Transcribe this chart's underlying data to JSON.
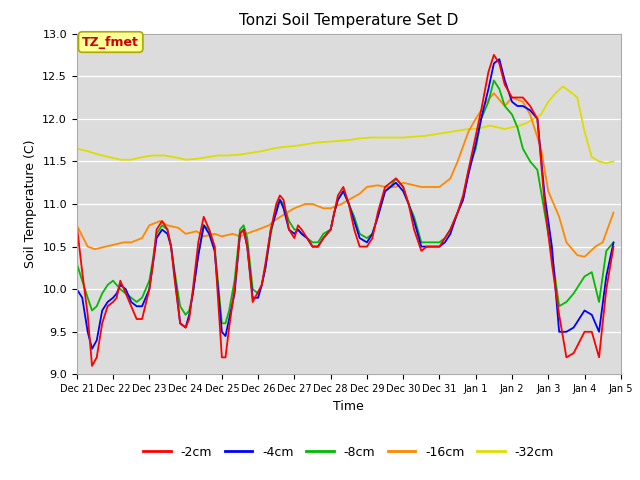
{
  "title": "Tonzi Soil Temperature Set D",
  "xlabel": "Time",
  "ylabel": "Soil Temperature (C)",
  "ylim": [
    9.0,
    13.0
  ],
  "yticks": [
    9.0,
    9.5,
    10.0,
    10.5,
    11.0,
    11.5,
    12.0,
    12.5,
    13.0
  ],
  "xtick_labels": [
    "Dec 21",
    "Dec 22",
    "Dec 23",
    "Dec 24",
    "Dec 25",
    "Dec 26",
    "Dec 27",
    "Dec 28",
    "Dec 29",
    "Dec 30",
    "Dec 31",
    "Jan 1",
    "Jan 2",
    "Jan 3",
    "Jan 4",
    "Jan 5"
  ],
  "annotation_text": "TZ_fmet",
  "annotation_color": "#cc0000",
  "annotation_bg": "#ffff99",
  "background_color": "#dcdcdc",
  "series": {
    "neg2cm": {
      "color": "#ff0000",
      "label": "-2cm",
      "x": [
        0,
        0.15,
        0.3,
        0.42,
        0.55,
        0.7,
        0.85,
        1.0,
        1.1,
        1.2,
        1.35,
        1.5,
        1.65,
        1.8,
        2.0,
        2.1,
        2.2,
        2.35,
        2.5,
        2.6,
        2.7,
        2.85,
        3.0,
        3.1,
        3.2,
        3.35,
        3.5,
        3.65,
        3.8,
        4.0,
        4.1,
        4.2,
        4.35,
        4.5,
        4.6,
        4.7,
        4.85,
        5.0,
        5.1,
        5.2,
        5.35,
        5.5,
        5.6,
        5.7,
        5.85,
        6.0,
        6.1,
        6.2,
        6.35,
        6.5,
        6.65,
        6.8,
        7.0,
        7.1,
        7.2,
        7.35,
        7.5,
        7.65,
        7.8,
        8.0,
        8.15,
        8.3,
        8.5,
        8.65,
        8.8,
        9.0,
        9.15,
        9.3,
        9.5,
        9.65,
        9.8,
        10.0,
        10.15,
        10.3,
        10.5,
        10.65,
        10.8,
        11.0,
        11.15,
        11.35,
        11.5,
        11.65,
        11.8,
        12.0,
        12.15,
        12.3,
        12.5,
        12.7,
        12.9,
        13.1,
        13.3,
        13.5,
        13.7,
        14.0,
        14.2,
        14.4,
        14.6,
        14.8
      ],
      "y": [
        10.75,
        10.2,
        9.7,
        9.1,
        9.2,
        9.6,
        9.8,
        9.85,
        9.9,
        10.1,
        9.95,
        9.8,
        9.65,
        9.65,
        10.0,
        10.3,
        10.7,
        10.8,
        10.7,
        10.5,
        10.1,
        9.6,
        9.55,
        9.65,
        10.0,
        10.55,
        10.85,
        10.7,
        10.5,
        9.2,
        9.2,
        9.55,
        10.0,
        10.65,
        10.7,
        10.5,
        9.85,
        9.97,
        10.05,
        10.3,
        10.7,
        11.0,
        11.1,
        11.05,
        10.7,
        10.6,
        10.75,
        10.7,
        10.6,
        10.5,
        10.5,
        10.6,
        10.7,
        10.9,
        11.1,
        11.2,
        11.0,
        10.7,
        10.5,
        10.5,
        10.6,
        10.9,
        11.2,
        11.25,
        11.3,
        11.2,
        11.0,
        10.7,
        10.45,
        10.5,
        10.5,
        10.5,
        10.6,
        10.7,
        10.9,
        11.1,
        11.4,
        11.8,
        12.1,
        12.55,
        12.75,
        12.65,
        12.4,
        12.25,
        12.25,
        12.25,
        12.15,
        12.0,
        11.0,
        10.3,
        9.7,
        9.2,
        9.25,
        9.5,
        9.5,
        9.2,
        10.0,
        10.5
      ]
    },
    "neg4cm": {
      "color": "#0000ff",
      "label": "-4cm",
      "x": [
        0,
        0.15,
        0.3,
        0.42,
        0.55,
        0.7,
        0.85,
        1.0,
        1.1,
        1.2,
        1.35,
        1.5,
        1.65,
        1.8,
        2.0,
        2.1,
        2.2,
        2.35,
        2.5,
        2.6,
        2.7,
        2.85,
        3.0,
        3.1,
        3.2,
        3.35,
        3.5,
        3.65,
        3.8,
        4.0,
        4.1,
        4.2,
        4.35,
        4.5,
        4.6,
        4.7,
        4.85,
        5.0,
        5.1,
        5.2,
        5.35,
        5.5,
        5.6,
        5.7,
        5.85,
        6.0,
        6.1,
        6.2,
        6.35,
        6.5,
        6.65,
        6.8,
        7.0,
        7.1,
        7.2,
        7.35,
        7.5,
        7.65,
        7.8,
        8.0,
        8.15,
        8.3,
        8.5,
        8.65,
        8.8,
        9.0,
        9.15,
        9.3,
        9.5,
        9.65,
        9.8,
        10.0,
        10.15,
        10.3,
        10.5,
        10.65,
        10.8,
        11.0,
        11.15,
        11.35,
        11.5,
        11.65,
        11.8,
        12.0,
        12.15,
        12.3,
        12.5,
        12.7,
        12.9,
        13.1,
        13.3,
        13.5,
        13.7,
        14.0,
        14.2,
        14.4,
        14.6,
        14.8
      ],
      "y": [
        10.0,
        9.9,
        9.5,
        9.3,
        9.4,
        9.75,
        9.85,
        9.9,
        9.95,
        10.05,
        10.0,
        9.85,
        9.8,
        9.8,
        10.0,
        10.3,
        10.6,
        10.7,
        10.65,
        10.5,
        10.15,
        9.6,
        9.55,
        9.7,
        9.95,
        10.4,
        10.75,
        10.65,
        10.45,
        9.5,
        9.45,
        9.65,
        9.95,
        10.65,
        10.7,
        10.5,
        9.9,
        9.9,
        10.05,
        10.25,
        10.7,
        10.9,
        11.05,
        10.95,
        10.7,
        10.65,
        10.7,
        10.65,
        10.6,
        10.5,
        10.5,
        10.6,
        10.7,
        10.9,
        11.05,
        11.15,
        11.0,
        10.8,
        10.6,
        10.55,
        10.65,
        10.85,
        11.15,
        11.2,
        11.25,
        11.15,
        11.0,
        10.8,
        10.5,
        10.5,
        10.5,
        10.5,
        10.55,
        10.65,
        10.9,
        11.05,
        11.35,
        11.7,
        12.0,
        12.35,
        12.65,
        12.7,
        12.45,
        12.2,
        12.15,
        12.15,
        12.1,
        12.0,
        11.1,
        10.5,
        9.5,
        9.5,
        9.55,
        9.75,
        9.7,
        9.5,
        10.15,
        10.55
      ]
    },
    "neg8cm": {
      "color": "#00bb00",
      "label": "-8cm",
      "x": [
        0,
        0.15,
        0.3,
        0.42,
        0.55,
        0.7,
        0.85,
        1.0,
        1.1,
        1.2,
        1.35,
        1.5,
        1.65,
        1.8,
        2.0,
        2.1,
        2.2,
        2.35,
        2.5,
        2.6,
        2.7,
        2.85,
        3.0,
        3.1,
        3.2,
        3.35,
        3.5,
        3.65,
        3.8,
        4.0,
        4.1,
        4.2,
        4.35,
        4.5,
        4.6,
        4.7,
        4.85,
        5.0,
        5.1,
        5.2,
        5.35,
        5.5,
        5.6,
        5.7,
        5.85,
        6.0,
        6.1,
        6.2,
        6.35,
        6.5,
        6.65,
        6.8,
        7.0,
        7.1,
        7.2,
        7.35,
        7.5,
        7.65,
        7.8,
        8.0,
        8.15,
        8.3,
        8.5,
        8.65,
        8.8,
        9.0,
        9.15,
        9.3,
        9.5,
        9.65,
        9.8,
        10.0,
        10.15,
        10.3,
        10.5,
        10.65,
        10.8,
        11.0,
        11.15,
        11.35,
        11.5,
        11.65,
        11.8,
        12.0,
        12.15,
        12.3,
        12.5,
        12.7,
        12.9,
        13.1,
        13.3,
        13.5,
        13.7,
        14.0,
        14.2,
        14.4,
        14.6,
        14.8
      ],
      "y": [
        10.3,
        10.1,
        9.9,
        9.75,
        9.8,
        9.95,
        10.05,
        10.1,
        10.05,
        10.0,
        9.95,
        9.9,
        9.85,
        9.9,
        10.1,
        10.35,
        10.65,
        10.75,
        10.7,
        10.5,
        10.2,
        9.8,
        9.7,
        9.75,
        9.95,
        10.4,
        10.75,
        10.7,
        10.5,
        9.6,
        9.6,
        9.75,
        10.1,
        10.7,
        10.75,
        10.6,
        10.0,
        9.95,
        10.05,
        10.25,
        10.65,
        10.95,
        11.05,
        11.0,
        10.8,
        10.7,
        10.7,
        10.65,
        10.6,
        10.55,
        10.55,
        10.65,
        10.7,
        10.9,
        11.05,
        11.15,
        11.0,
        10.85,
        10.65,
        10.6,
        10.65,
        10.85,
        11.15,
        11.2,
        11.3,
        11.2,
        11.0,
        10.85,
        10.55,
        10.55,
        10.55,
        10.55,
        10.6,
        10.7,
        10.9,
        11.05,
        11.4,
        11.65,
        12.0,
        12.2,
        12.45,
        12.35,
        12.15,
        12.05,
        11.9,
        11.65,
        11.5,
        11.4,
        10.9,
        10.4,
        9.8,
        9.85,
        9.95,
        10.15,
        10.2,
        9.85,
        10.45,
        10.55
      ]
    },
    "neg16cm": {
      "color": "#ff8800",
      "label": "-16cm",
      "x": [
        0,
        0.3,
        0.5,
        0.8,
        1.0,
        1.3,
        1.5,
        1.8,
        2.0,
        2.3,
        2.5,
        2.8,
        3.0,
        3.3,
        3.5,
        3.8,
        4.0,
        4.3,
        4.5,
        4.8,
        5.0,
        5.3,
        5.5,
        5.8,
        6.0,
        6.3,
        6.5,
        6.8,
        7.0,
        7.3,
        7.5,
        7.8,
        8.0,
        8.3,
        8.5,
        8.8,
        9.0,
        9.3,
        9.5,
        9.8,
        10.0,
        10.3,
        10.5,
        10.8,
        11.0,
        11.3,
        11.5,
        11.8,
        12.0,
        12.3,
        12.5,
        12.8,
        13.0,
        13.3,
        13.5,
        13.8,
        14.0,
        14.3,
        14.5,
        14.8
      ],
      "y": [
        10.75,
        10.5,
        10.47,
        10.5,
        10.52,
        10.55,
        10.55,
        10.6,
        10.75,
        10.8,
        10.75,
        10.72,
        10.65,
        10.68,
        10.62,
        10.65,
        10.62,
        10.65,
        10.62,
        10.67,
        10.7,
        10.75,
        10.82,
        10.9,
        10.95,
        11.0,
        11.0,
        10.95,
        10.95,
        11.0,
        11.05,
        11.12,
        11.2,
        11.22,
        11.2,
        11.2,
        11.25,
        11.22,
        11.2,
        11.2,
        11.2,
        11.3,
        11.5,
        11.85,
        12.0,
        12.2,
        12.3,
        12.15,
        12.25,
        12.2,
        12.05,
        11.65,
        11.15,
        10.85,
        10.55,
        10.4,
        10.38,
        10.5,
        10.55,
        10.9
      ]
    },
    "neg32cm": {
      "color": "#dddd00",
      "label": "-32cm",
      "x": [
        0,
        0.3,
        0.6,
        0.9,
        1.2,
        1.5,
        1.8,
        2.1,
        2.4,
        2.7,
        3.0,
        3.3,
        3.6,
        3.9,
        4.2,
        4.5,
        4.8,
        5.1,
        5.4,
        5.7,
        6.0,
        6.3,
        6.6,
        6.9,
        7.2,
        7.5,
        7.8,
        8.1,
        8.4,
        8.7,
        9.0,
        9.3,
        9.6,
        9.9,
        10.2,
        10.5,
        10.8,
        11.0,
        11.2,
        11.4,
        11.6,
        11.8,
        12.0,
        12.2,
        12.4,
        12.6,
        12.8,
        13.0,
        13.2,
        13.4,
        13.6,
        13.8,
        14.0,
        14.2,
        14.4,
        14.6,
        14.8
      ],
      "y": [
        11.65,
        11.62,
        11.58,
        11.55,
        11.52,
        11.52,
        11.55,
        11.57,
        11.57,
        11.55,
        11.52,
        11.53,
        11.55,
        11.57,
        11.57,
        11.58,
        11.6,
        11.62,
        11.65,
        11.67,
        11.68,
        11.7,
        11.72,
        11.73,
        11.74,
        11.75,
        11.77,
        11.78,
        11.78,
        11.78,
        11.78,
        11.79,
        11.8,
        11.82,
        11.84,
        11.86,
        11.88,
        11.88,
        11.9,
        11.92,
        11.9,
        11.88,
        11.9,
        11.92,
        11.95,
        12.0,
        12.05,
        12.2,
        12.3,
        12.38,
        12.32,
        12.25,
        11.85,
        11.55,
        11.5,
        11.48,
        11.5
      ]
    }
  }
}
